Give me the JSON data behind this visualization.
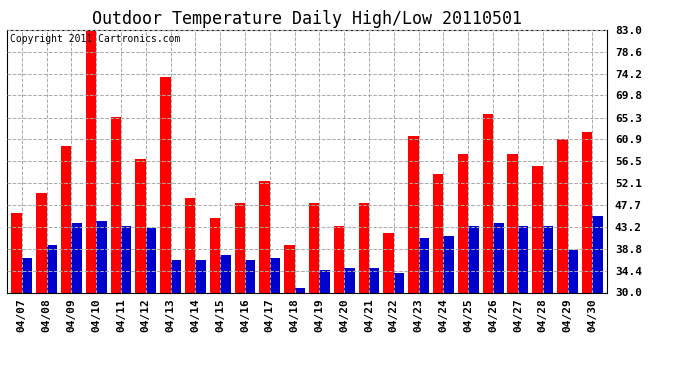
{
  "title": "Outdoor Temperature Daily High/Low 20110501",
  "copyright": "Copyright 2011 Cartronics.com",
  "dates": [
    "04/07",
    "04/08",
    "04/09",
    "04/10",
    "04/11",
    "04/12",
    "04/13",
    "04/14",
    "04/15",
    "04/16",
    "04/17",
    "04/18",
    "04/19",
    "04/20",
    "04/21",
    "04/22",
    "04/23",
    "04/24",
    "04/25",
    "04/26",
    "04/27",
    "04/28",
    "04/29",
    "04/30"
  ],
  "highs": [
    46.0,
    50.0,
    59.5,
    83.0,
    65.5,
    57.0,
    73.5,
    49.0,
    45.0,
    48.0,
    52.5,
    39.5,
    48.0,
    43.5,
    48.0,
    42.0,
    61.5,
    54.0,
    58.0,
    66.0,
    58.0,
    55.5,
    61.0,
    62.5
  ],
  "lows": [
    37.0,
    39.5,
    44.0,
    44.5,
    43.5,
    43.0,
    36.5,
    36.5,
    37.5,
    36.5,
    37.0,
    31.0,
    34.5,
    35.0,
    35.0,
    34.0,
    41.0,
    41.5,
    43.5,
    44.0,
    43.5,
    43.5,
    38.5,
    45.5
  ],
  "high_color": "#ff0000",
  "low_color": "#0000cc",
  "bg_color": "#ffffff",
  "plot_bg_color": "#ffffff",
  "grid_color": "#aaaaaa",
  "ylim": [
    30.0,
    83.0
  ],
  "yticks": [
    30.0,
    34.4,
    38.8,
    43.2,
    47.7,
    52.1,
    56.5,
    60.9,
    65.3,
    69.8,
    74.2,
    78.6,
    83.0
  ],
  "bar_width": 0.42,
  "title_fontsize": 12,
  "tick_fontsize": 8,
  "copyright_fontsize": 7
}
